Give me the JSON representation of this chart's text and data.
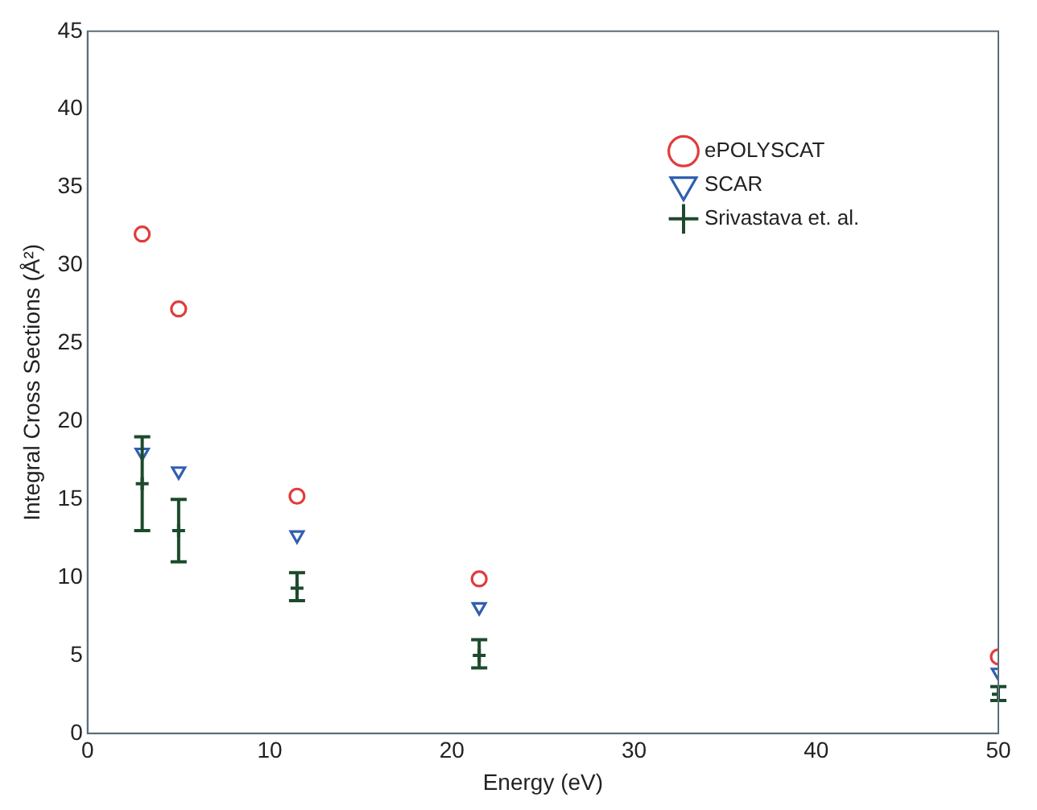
{
  "chart_data": {
    "type": "scatter",
    "xlabel": "Energy (eV)",
    "ylabel": "Integral Cross Sections (Å²)",
    "xlim": [
      0,
      50
    ],
    "xticks": [
      0,
      10,
      20,
      30,
      40,
      50
    ],
    "ylim": [
      0,
      45
    ],
    "yticks": [
      0,
      5,
      10,
      15,
      20,
      25,
      30,
      35,
      40,
      45
    ],
    "grid": false,
    "legend": "top right",
    "x": [
      3,
      5,
      11.5,
      21.5,
      50
    ],
    "series": [
      {
        "name": "ePOLYSCAT",
        "color": "#e03c3c",
        "marker": "circle",
        "values": [
          32,
          27.2,
          15.2,
          9.9,
          4.9
        ]
      },
      {
        "name": "SCAR",
        "color": "#2f5fb0",
        "marker": "triangle",
        "values": [
          18,
          16.8,
          12.7,
          8.1,
          3.9
        ]
      },
      {
        "name": "Srivastava et. al.",
        "color": "#1d4a2c",
        "marker": "cross",
        "values": [
          16,
          13,
          9.3,
          5,
          2.5
        ],
        "errors": [
          [
            13,
            19
          ],
          [
            11,
            15
          ],
          [
            8.5,
            10.3
          ],
          [
            4.2,
            6
          ],
          [
            2.1,
            3
          ]
        ]
      }
    ]
  }
}
